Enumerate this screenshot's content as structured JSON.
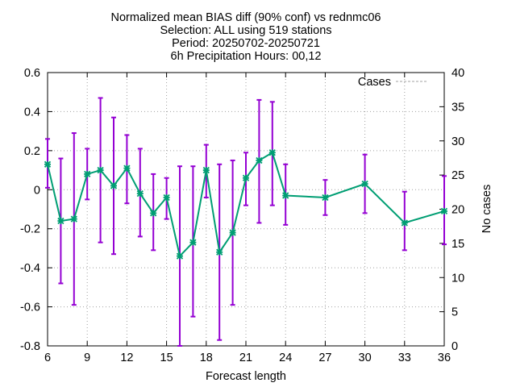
{
  "chart_data": {
    "type": "line",
    "title_lines": [
      "Normalized mean BIAS diff (90% conf) vs rednmc06",
      "Selection: ALL using   519 stations",
      "Period: 20250702-20250721",
      "6h Precipitation   Hours: 00,12"
    ],
    "xlabel": "Forecast length",
    "ylabel": "",
    "y2label": "No cases",
    "xlim": [
      6,
      36
    ],
    "ylim": [
      -0.8,
      0.6
    ],
    "y2lim": [
      0,
      40
    ],
    "x_ticks": [
      6,
      9,
      12,
      15,
      18,
      21,
      24,
      27,
      30,
      33,
      36
    ],
    "y_ticks": [
      -0.8,
      -0.6,
      -0.4,
      -0.2,
      0,
      0.2,
      0.4,
      0.6
    ],
    "y_tick_labels": [
      "-0.8",
      "-0.6",
      "-0.4",
      "-0.2",
      "0",
      "0.2",
      "0.4",
      "0.6"
    ],
    "y2_ticks": [
      0,
      5,
      10,
      15,
      20,
      25,
      30,
      35,
      40
    ],
    "grid": true,
    "legend": {
      "position": "top-right",
      "entries": [
        "Cases"
      ]
    },
    "series": [
      {
        "name": "",
        "color": "#009e73",
        "errorbar_color": "#9400d3",
        "x": [
          6,
          7,
          8,
          9,
          10,
          11,
          12,
          13,
          14,
          15,
          16,
          17,
          18,
          19,
          20,
          21,
          22,
          23,
          24,
          27,
          30,
          33,
          36
        ],
        "y": [
          0.13,
          -0.16,
          -0.15,
          0.08,
          0.1,
          0.02,
          0.11,
          -0.02,
          -0.12,
          -0.04,
          -0.34,
          -0.27,
          0.1,
          -0.32,
          -0.22,
          0.06,
          0.15,
          0.19,
          -0.03,
          -0.04,
          0.03,
          -0.17,
          -0.11
        ],
        "y_low": [
          0.01,
          -0.48,
          -0.59,
          -0.05,
          -0.27,
          -0.33,
          -0.07,
          -0.24,
          -0.31,
          -0.15,
          -0.8,
          -0.65,
          -0.04,
          -0.77,
          -0.59,
          -0.08,
          -0.17,
          -0.08,
          -0.18,
          -0.13,
          -0.12,
          -0.31,
          -0.28
        ],
        "y_high": [
          0.26,
          0.16,
          0.29,
          0.21,
          0.47,
          0.37,
          0.28,
          0.21,
          0.08,
          0.06,
          0.12,
          0.12,
          0.23,
          0.13,
          0.15,
          0.19,
          0.46,
          0.45,
          0.13,
          0.05,
          0.18,
          -0.01,
          0.07
        ]
      },
      {
        "name": "Cases",
        "color": "#a0a0a0",
        "style": "dashed",
        "axis": "y2",
        "x": [],
        "y": []
      }
    ]
  }
}
